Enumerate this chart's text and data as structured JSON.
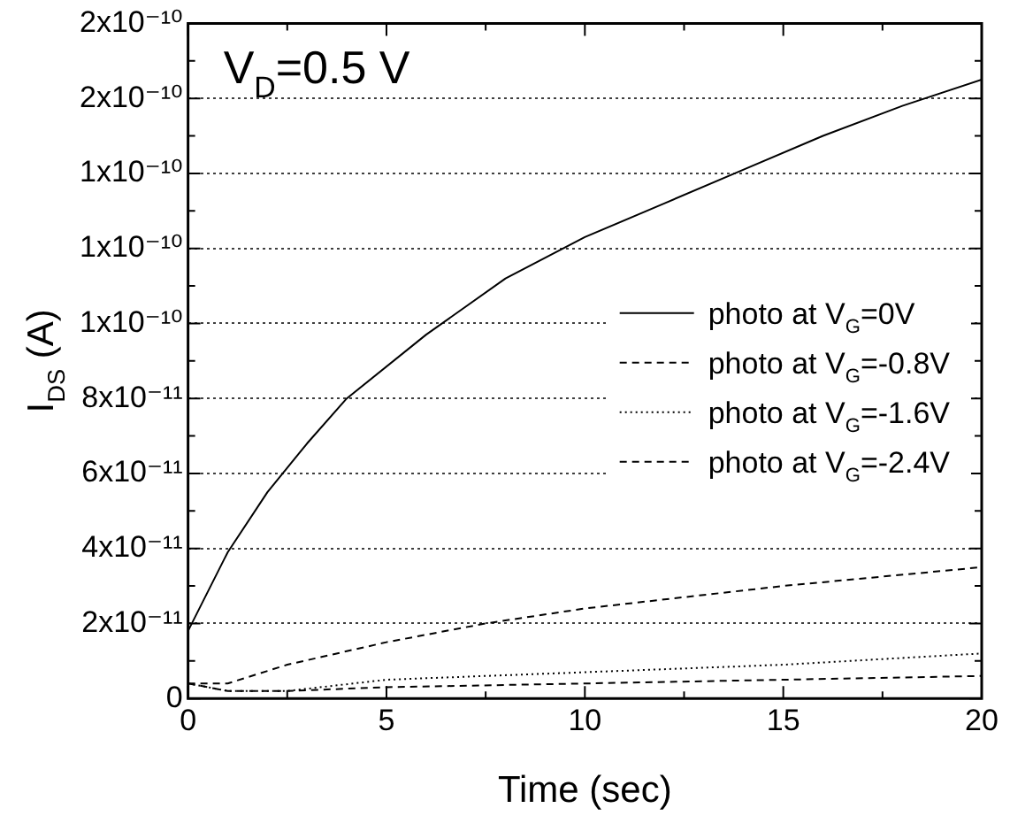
{
  "chart_data": {
    "type": "line",
    "xlabel": "Time (sec)",
    "ylabel": "I$_{DS}$ (A)",
    "annotations": [
      "V$_{D}$=0.5 V"
    ],
    "xlim": [
      0,
      20
    ],
    "xticks": [
      0,
      {
        "value": 2.5,
        "label": null
      },
      5,
      {
        "value": 7.5,
        "label": null
      },
      10,
      {
        "value": 12.5,
        "label": null
      },
      15,
      {
        "value": 17.5,
        "label": null
      },
      20
    ],
    "ylim": [
      0,
      1.8e-10
    ],
    "yticks": [
      0,
      {
        "value": 1e-11,
        "label": null
      },
      {
        "value": 2e-11,
        "label": "2x10⁻¹¹"
      },
      {
        "value": 3e-11,
        "label": null
      },
      {
        "value": 4e-11,
        "label": "4x10⁻¹¹"
      },
      {
        "value": 5e-11,
        "label": null
      },
      {
        "value": 6e-11,
        "label": "6x10⁻¹¹"
      },
      {
        "value": 7e-11,
        "label": null
      },
      {
        "value": 8e-11,
        "label": "8x10⁻¹¹"
      },
      {
        "value": 9e-11,
        "label": null
      },
      {
        "value": 1e-10,
        "label": "1x10⁻¹⁰"
      },
      {
        "value": 1.1e-10,
        "label": null
      },
      {
        "value": 1.2e-10,
        "label": "1x10⁻¹⁰"
      },
      {
        "value": 1.3e-10,
        "label": null
      },
      {
        "value": 1.4e-10,
        "label": "1x10⁻¹⁰"
      },
      {
        "value": 1.5e-10,
        "label": null
      },
      {
        "value": 1.6e-10,
        "label": "2x10⁻¹⁰"
      },
      {
        "value": 1.7e-10,
        "label": null
      },
      {
        "value": 1.8e-10,
        "label": "2x10⁻¹⁰"
      }
    ],
    "grid": "y",
    "legend": "right",
    "marker": "none",
    "series": [
      {
        "name": "photo at V$_{G}$=0V",
        "color": "#000000",
        "line_style": "solid",
        "x": [
          0,
          1,
          2,
          3,
          4,
          6,
          8,
          10,
          12,
          14,
          16,
          18,
          20
        ],
        "values": [
          1.8e-11,
          3.9e-11,
          5.5e-11,
          6.8e-11,
          8e-11,
          9.7e-11,
          1.12e-10,
          1.23e-10,
          1.32e-10,
          1.41e-10,
          1.5e-10,
          1.58e-10,
          1.65e-10
        ]
      },
      {
        "name": "photo at V$_{G}$=-0.8V",
        "color": "#000000",
        "line_style": "dashed",
        "x": [
          0,
          1,
          2.5,
          5,
          7.5,
          10,
          15,
          20
        ],
        "values": [
          4e-12,
          4e-12,
          9e-12,
          1.5e-11,
          2e-11,
          2.4e-11,
          3e-11,
          3.5e-11
        ]
      },
      {
        "name": "photo at V$_{G}$=-1.6V",
        "color": "#000000",
        "line_style": "dotted",
        "x": [
          0,
          1,
          2.5,
          5,
          10,
          15,
          20
        ],
        "values": [
          4e-12,
          2e-12,
          2e-12,
          5e-12,
          7e-12,
          9e-12,
          1.2e-11
        ]
      },
      {
        "name": "photo at V$_{G}$=-2.4V",
        "color": "#000000",
        "line_style": "dashed",
        "x": [
          0,
          1,
          2.5,
          5,
          10,
          15,
          20
        ],
        "values": [
          4e-12,
          2e-12,
          2e-12,
          3e-12,
          4e-12,
          5e-12,
          6e-12
        ]
      }
    ]
  }
}
